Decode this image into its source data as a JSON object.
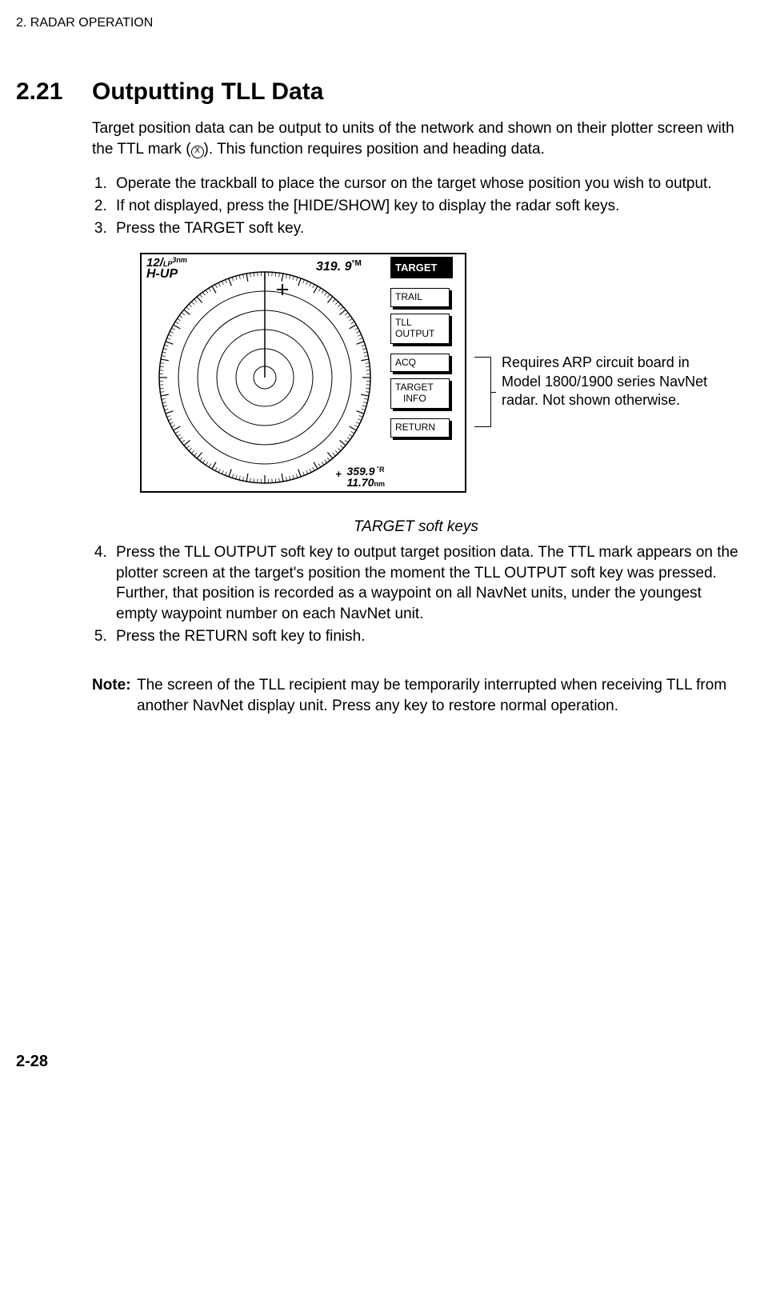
{
  "runningHeader": "2. RADAR OPERATION",
  "section": {
    "number": "2.21",
    "title": "Outputting TLL Data"
  },
  "intro_a": "Target position data can be output to units of the network and shown on their plotter screen with the TTL mark (",
  "intro_b": "). This function requires position and heading data.",
  "circleGlyph": "X",
  "steps1": [
    "Operate the trackball to place the cursor on the target whose position you wish to output.",
    "If not displayed, press the [HIDE/SHOW] key to display the radar soft keys.",
    "Press the TARGET soft key."
  ],
  "radar": {
    "rangeLabel": "12/",
    "rangeSub": "LP",
    "rangeSup": "3nm",
    "mode": "H-UP",
    "heading": "319. 9",
    "headingUnit": "°M",
    "br_bearing": "359.9",
    "br_bearing_unit": " ˚R",
    "br_range": "11.70",
    "br_range_unit": "nm",
    "cursorPlus": "+",
    "rings_outer_r": 132,
    "rings": [
      132,
      108,
      84,
      60,
      36,
      14
    ],
    "tick_count": 180,
    "colors": {
      "stroke": "#000000",
      "bg": "#ffffff",
      "header_bg": "#000000",
      "header_fg": "#ffffff"
    }
  },
  "softkeys": {
    "header": "TARGET",
    "buttons": [
      "TRAIL",
      "TLL\nOUTPUT",
      "ACQ",
      "TARGET\n   INFO",
      "RETURN"
    ]
  },
  "bracketNote": "Requires ARP circuit board in Model 1800/1900 series NavNet radar. Not shown otherwise.",
  "figCaption": "TARGET soft keys",
  "steps2": [
    "Press the TLL OUTPUT soft key to output target position data. The TTL mark appears on the plotter screen at the target's position the moment the TLL OUTPUT soft key was pressed. Further, that position is recorded as a waypoint on all NavNet units, under the youngest empty waypoint number on each NavNet unit.",
    "Press the RETURN soft key to finish."
  ],
  "note": {
    "label": "Note:",
    "text": "The screen of the TLL recipient may be temporarily interrupted when receiving TLL from another NavNet display unit. Press any key to restore normal operation."
  },
  "pageNumber": "2-28"
}
